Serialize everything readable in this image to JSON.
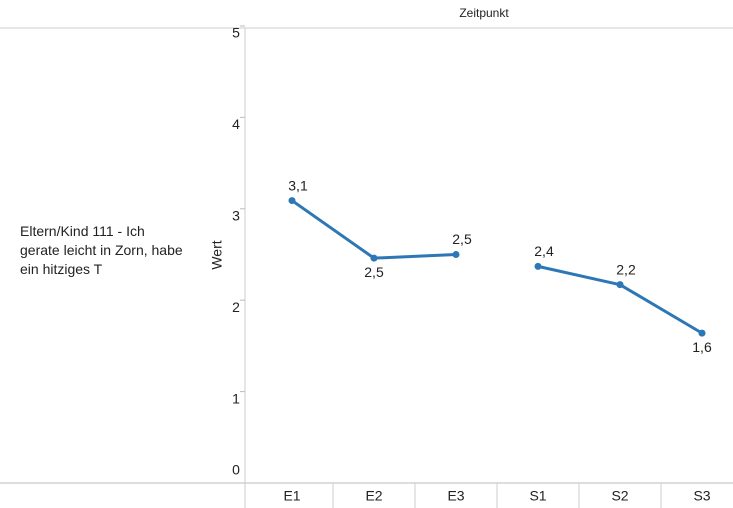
{
  "chart_data": {
    "type": "line",
    "column_header": "Zeitpunkt",
    "row_label": "Eltern/Kind 111 - Ich gerate leicht in Zorn, habe ein hitziges T",
    "ylabel": "Wert",
    "categories": [
      "E1",
      "E2",
      "E3",
      "S1",
      "S2",
      "S3"
    ],
    "values": [
      3.09,
      2.46,
      2.5,
      2.37,
      2.17,
      1.64
    ],
    "value_labels": [
      "3,1",
      "2,5",
      "2,5",
      "2,4",
      "2,2",
      "1,6"
    ],
    "line_breaks_after": [
      2
    ],
    "color": "#2e77b6",
    "ylim": [
      0,
      5
    ],
    "yticks": [
      0,
      1,
      2,
      3,
      4,
      5
    ],
    "grid": false
  }
}
